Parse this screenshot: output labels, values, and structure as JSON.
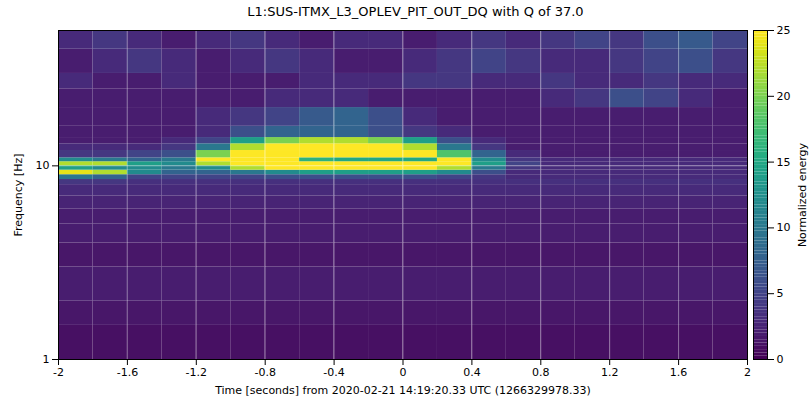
{
  "chart_data": {
    "type": "heatmap",
    "title": "L1:SUS-ITMX_L3_OPLEV_PIT_OUT_DQ with Q of 37.0",
    "x_label": "Time [seconds] from 2020-02-21 14:19:20.33 UTC (1266329978.33)",
    "y_label": "Frequency [Hz]",
    "colorbar_label": "Normalized energy",
    "color": "viridis",
    "log": "y",
    "grid": true,
    "xlim": [
      -2,
      2
    ],
    "xticks": [
      -2,
      -1.6,
      -1.2,
      -0.8,
      -0.4,
      0,
      0.4,
      0.8,
      1.2,
      1.6,
      2
    ],
    "ylim": [
      1,
      50
    ],
    "yticks": [
      1,
      10
    ],
    "colorbar_lim": [
      0,
      25
    ],
    "colorbar_ticks": [
      0,
      5,
      10,
      15,
      20,
      25
    ],
    "x_bins": [
      -2,
      -1.8,
      -1.6,
      -1.4,
      -1.2,
      -1,
      -0.8,
      -0.6,
      -0.4,
      -0.2,
      0,
      0.2,
      0.4,
      0.6,
      0.8,
      1,
      1.2,
      1.4,
      1.6,
      1.8,
      2
    ],
    "y_bins": [
      1,
      1.5,
      2,
      3,
      4,
      5,
      6,
      7,
      8,
      8.5,
      9,
      9.5,
      10,
      10.5,
      11,
      12,
      13,
      14,
      16,
      20,
      25,
      30,
      40,
      50
    ],
    "values": [
      [
        1,
        1,
        1,
        1,
        1,
        1,
        1,
        1,
        1,
        1,
        1,
        1,
        1,
        1,
        1,
        1,
        1,
        1,
        1,
        1
      ],
      [
        1.5,
        1.5,
        1.5,
        1.5,
        1.5,
        1.5,
        1.5,
        1.5,
        1.5,
        1.5,
        1.5,
        1.5,
        1.5,
        1.5,
        1.5,
        1.5,
        1.5,
        1.5,
        1.5,
        1.5
      ],
      [
        2,
        2,
        2,
        2,
        2,
        2,
        2,
        2,
        2,
        2,
        2,
        2,
        2,
        2,
        2,
        2,
        2,
        2,
        2,
        2
      ],
      [
        1.5,
        1.5,
        1.5,
        1.5,
        1.5,
        1.5,
        1.5,
        1.5,
        1.5,
        1.5,
        1.5,
        1.5,
        1.5,
        1.5,
        1.5,
        1.5,
        1.5,
        1.5,
        1.5,
        1.5
      ],
      [
        2,
        2,
        2,
        2,
        2,
        2,
        2,
        2,
        2,
        2,
        2,
        2,
        2,
        2,
        2,
        2,
        2,
        2,
        2,
        2
      ],
      [
        2,
        2,
        2,
        2,
        2,
        2,
        2,
        2,
        2,
        2,
        2,
        2,
        2,
        2,
        2,
        2,
        2,
        2,
        2,
        2
      ],
      [
        2.5,
        2.5,
        2.5,
        2.5,
        2.5,
        2.5,
        2.5,
        2.5,
        2.5,
        2.5,
        2.5,
        2.5,
        2.5,
        2.5,
        2.5,
        2.5,
        2.5,
        2.5,
        2.5,
        2.5
      ],
      [
        3,
        3,
        3,
        3,
        3,
        3,
        3,
        3,
        3,
        3,
        3,
        3,
        3,
        3,
        3,
        3,
        3,
        3,
        3,
        3
      ],
      [
        4,
        4,
        3.5,
        3.5,
        3.5,
        3.5,
        3.5,
        3.5,
        3.5,
        3.5,
        3.5,
        3.5,
        3.5,
        3.5,
        3.5,
        3.5,
        3.5,
        3.5,
        3.5,
        3.5
      ],
      [
        10,
        8,
        5,
        5,
        5,
        5,
        6,
        6,
        6,
        6,
        6,
        5,
        4,
        3,
        3,
        3,
        3,
        3,
        3,
        3
      ],
      [
        24,
        22,
        12,
        8,
        8,
        10,
        12,
        14,
        14,
        14,
        14,
        12,
        6,
        3,
        3,
        3,
        3,
        3,
        3,
        3
      ],
      [
        14,
        12,
        12,
        10,
        12,
        22,
        25,
        25,
        25,
        25,
        25,
        22,
        10,
        4,
        3,
        3,
        3,
        3,
        3,
        3
      ],
      [
        22,
        22,
        14,
        12,
        22,
        25,
        25,
        25,
        25,
        25,
        25,
        25,
        14,
        5,
        3,
        3,
        3,
        3,
        3,
        3
      ],
      [
        12,
        10,
        8,
        10,
        25,
        25,
        25,
        16,
        15,
        15,
        15,
        25,
        12,
        4,
        3,
        3,
        3,
        3,
        3,
        3
      ],
      [
        4,
        4,
        5,
        6,
        20,
        25,
        25,
        25,
        25,
        25,
        25,
        18,
        8,
        3,
        2,
        2,
        2,
        2,
        2,
        2
      ],
      [
        3,
        3,
        3,
        4,
        10,
        22,
        25,
        25,
        25,
        25,
        22,
        10,
        4,
        2,
        2,
        2,
        2,
        2,
        2,
        2
      ],
      [
        2,
        2,
        2,
        3,
        5,
        14,
        20,
        22,
        22,
        20,
        14,
        6,
        3,
        2,
        2,
        2,
        2,
        2,
        2,
        2
      ],
      [
        2,
        2,
        2,
        2,
        3,
        6,
        8,
        8,
        8,
        6,
        4,
        3,
        2,
        2,
        2,
        2,
        2,
        2,
        2,
        2
      ],
      [
        2,
        2,
        2,
        2,
        3,
        4,
        5,
        7,
        8,
        6,
        3,
        2,
        2,
        2,
        2,
        2,
        2,
        2,
        2,
        2
      ],
      [
        2,
        2,
        2,
        2,
        2,
        2,
        3,
        3,
        3,
        2,
        2,
        2,
        2,
        2,
        3,
        4,
        6,
        5,
        3,
        2
      ],
      [
        3,
        2,
        2,
        3,
        2,
        2,
        2,
        3,
        3,
        3,
        4,
        4,
        3,
        3,
        4,
        3,
        3,
        4,
        3,
        3
      ],
      [
        2,
        3,
        4,
        3,
        2,
        3,
        4,
        3,
        2,
        2,
        3,
        4,
        5,
        4,
        3,
        3,
        4,
        5,
        6,
        4
      ],
      [
        3,
        4,
        3,
        2,
        3,
        4,
        3,
        2,
        3,
        3,
        2,
        3,
        4,
        3,
        4,
        5,
        4,
        6,
        7,
        5
      ]
    ]
  }
}
